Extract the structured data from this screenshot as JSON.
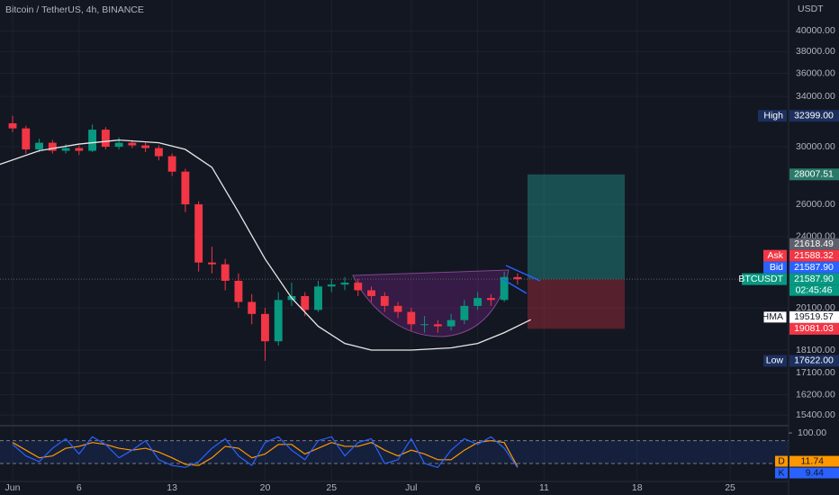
{
  "chart_data": {
    "type": "candlestick",
    "title": "Bitcoin / TetherUS, 4h, BINANCE",
    "y_unit": "USDT",
    "log_scale": true,
    "grid": true,
    "colors": {
      "up": "#089981",
      "down": "#f23645"
    },
    "x": [
      0,
      1,
      2,
      3,
      4,
      5,
      6,
      7,
      8,
      9,
      10,
      11,
      12,
      13,
      14,
      15,
      16,
      17,
      18,
      19,
      20,
      21,
      22,
      23,
      24,
      25,
      26,
      27,
      28,
      29,
      30,
      31,
      32,
      33,
      34,
      35,
      36,
      37,
      38
    ],
    "open": [
      31800,
      31400,
      29800,
      30300,
      29700,
      29900,
      29700,
      31300,
      30000,
      30300,
      30100,
      29900,
      29300,
      28200,
      26000,
      22500,
      22400,
      21500,
      20400,
      19800,
      18500,
      20500,
      20700,
      20000,
      21200,
      21300,
      21400,
      21000,
      20700,
      20200,
      19900,
      19300,
      19300,
      19200,
      19500,
      20200,
      20600,
      20500,
      21700
    ],
    "high": [
      32399,
      31600,
      30600,
      30500,
      30200,
      30100,
      31700,
      31500,
      30700,
      30500,
      30300,
      30100,
      29500,
      28400,
      26200,
      23400,
      22700,
      21900,
      20800,
      20100,
      20900,
      21400,
      20900,
      21500,
      21600,
      21700,
      21600,
      21200,
      20900,
      20400,
      20100,
      19700,
      19500,
      19800,
      20500,
      20900,
      20800,
      22000,
      21900
    ],
    "low": [
      31100,
      29500,
      29600,
      29500,
      29500,
      29400,
      29600,
      29800,
      29800,
      29900,
      29600,
      29000,
      27900,
      25500,
      22000,
      21900,
      21000,
      20100,
      19300,
      17622,
      18300,
      20200,
      19700,
      19900,
      20900,
      21000,
      20700,
      20400,
      19900,
      19600,
      19000,
      18900,
      18900,
      19000,
      19300,
      20000,
      20200,
      20400,
      21300
    ],
    "close": [
      31400,
      29800,
      30300,
      29700,
      29900,
      29700,
      31300,
      30000,
      30300,
      30100,
      29900,
      29300,
      28200,
      26000,
      22500,
      22400,
      21500,
      20400,
      19800,
      18500,
      20500,
      20700,
      20000,
      21200,
      21300,
      21400,
      21000,
      20700,
      20200,
      19900,
      19300,
      19300,
      19200,
      19500,
      20200,
      20600,
      20500,
      21700,
      21588
    ],
    "ylim": [
      15100,
      43200
    ],
    "yticks": [
      {
        "value": 40000,
        "label": "40000.00"
      },
      {
        "value": 38000,
        "label": "38000.00"
      },
      {
        "value": 36000,
        "label": "36000.00"
      },
      {
        "value": 34000,
        "label": "34000.00"
      },
      {
        "value": 30000,
        "label": "30000.00"
      },
      {
        "value": 26000,
        "label": "26000.00"
      },
      {
        "value": 24000,
        "label": "24000.00"
      },
      {
        "value": 20100,
        "label": "20100.00"
      },
      {
        "value": 18100,
        "label": "18100.00"
      },
      {
        "value": 17100,
        "label": "17100.00"
      },
      {
        "value": 16200,
        "label": "16200.00"
      },
      {
        "value": 15400,
        "label": "15400.00"
      }
    ],
    "xlim": [
      -0.95,
      58.4
    ],
    "xticks": [
      {
        "value": 0,
        "label": "Jun"
      },
      {
        "value": 5,
        "label": "6"
      },
      {
        "value": 12,
        "label": "13"
      },
      {
        "value": 19,
        "label": "20"
      },
      {
        "value": 24,
        "label": "25"
      },
      {
        "value": 30,
        "label": "Jul"
      },
      {
        "value": 35,
        "label": "6"
      },
      {
        "value": 40,
        "label": "11"
      },
      {
        "value": 47,
        "label": "18"
      },
      {
        "value": 54,
        "label": "25"
      }
    ],
    "hma": {
      "name": "HMA",
      "color": "#e8e8e8",
      "x": [
        -1,
        2,
        5,
        8,
        11,
        13,
        15,
        17,
        19,
        21,
        23,
        25,
        27,
        30,
        33,
        35,
        37,
        39
      ],
      "values": [
        28700,
        29700,
        30200,
        30500,
        30300,
        29800,
        28500,
        25500,
        22700,
        20600,
        19200,
        18400,
        18100,
        18100,
        18200,
        18400,
        18900,
        19519.57
      ]
    },
    "price_labels": [
      {
        "name": "High",
        "value": 32399,
        "label": "32399.00",
        "color": "#1c2f5e"
      },
      {
        "value": 28007.51,
        "color": "#2b7a69"
      },
      {
        "value": 21618.49,
        "color": "#5d606b"
      },
      {
        "name": "Ask",
        "value": 21588.32,
        "color": "#f23645"
      },
      {
        "name": "Bid",
        "value": 21587.9,
        "label": "21587.90",
        "color": "#2962ff"
      },
      {
        "name": "BTCUSDT",
        "value": 21587.9,
        "label": "21587.90",
        "color": "#089981",
        "countdown": "02:45:46"
      },
      {
        "name": "HMA",
        "value": 19519.57,
        "color": "#ffffff"
      },
      {
        "value": 19081.03,
        "color": "#f23645"
      },
      {
        "name": "Low",
        "value": 17622,
        "label": "17622.00",
        "color": "#1c2f5e"
      }
    ],
    "position_x": [
      38.75,
      46.07
    ],
    "stochastic": {
      "ylim": [
        -27,
        112
      ],
      "yticks": [
        {
          "value": 100,
          "label": "100.00"
        }
      ],
      "bands": [
        20,
        80
      ],
      "series": [
        {
          "name": "D",
          "color": "#ff9800",
          "values": [
            75,
            55,
            35,
            40,
            60,
            65,
            75,
            70,
            60,
            55,
            60,
            50,
            35,
            18,
            15,
            35,
            65,
            60,
            35,
            45,
            70,
            70,
            45,
            60,
            75,
            65,
            65,
            75,
            55,
            40,
            55,
            45,
            30,
            30,
            55,
            75,
            80,
            75,
            11.74
          ]
        },
        {
          "name": "K",
          "color": "#2962ff",
          "values": [
            70,
            40,
            25,
            60,
            85,
            45,
            90,
            70,
            35,
            55,
            80,
            30,
            15,
            10,
            25,
            60,
            85,
            40,
            15,
            75,
            90,
            55,
            30,
            80,
            90,
            40,
            75,
            85,
            20,
            30,
            85,
            20,
            10,
            55,
            85,
            70,
            90,
            60,
            9.44
          ]
        }
      ]
    }
  }
}
